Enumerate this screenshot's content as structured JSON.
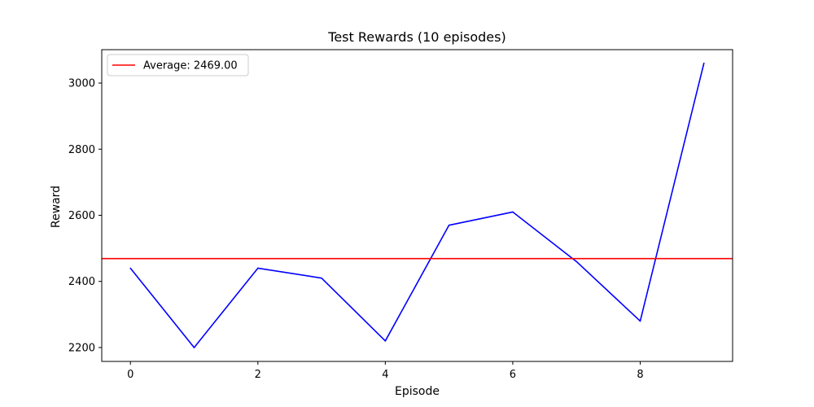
{
  "chart_data": {
    "type": "line",
    "title": "Test Rewards (10 episodes)",
    "xlabel": "Episode",
    "ylabel": "Reward",
    "xlim": [
      -0.45,
      9.45
    ],
    "ylim": [
      2158,
      3101
    ],
    "xticks": [
      0,
      2,
      4,
      6,
      8
    ],
    "yticks": [
      2200,
      2400,
      2600,
      2800,
      3000
    ],
    "grid": false,
    "legend_position": "top-left",
    "series": [
      {
        "name": "",
        "color": "#0000ff",
        "x": [
          0,
          1,
          2,
          3,
          4,
          5,
          6,
          7,
          8,
          9
        ],
        "y": [
          2440,
          2200,
          2440,
          2410,
          2220,
          2570,
          2610,
          2460,
          2280,
          3060
        ]
      }
    ],
    "reference_lines": [
      {
        "orientation": "horizontal",
        "y": 2469.0,
        "label": "Average: 2469.00",
        "color": "#ff0000"
      }
    ]
  }
}
